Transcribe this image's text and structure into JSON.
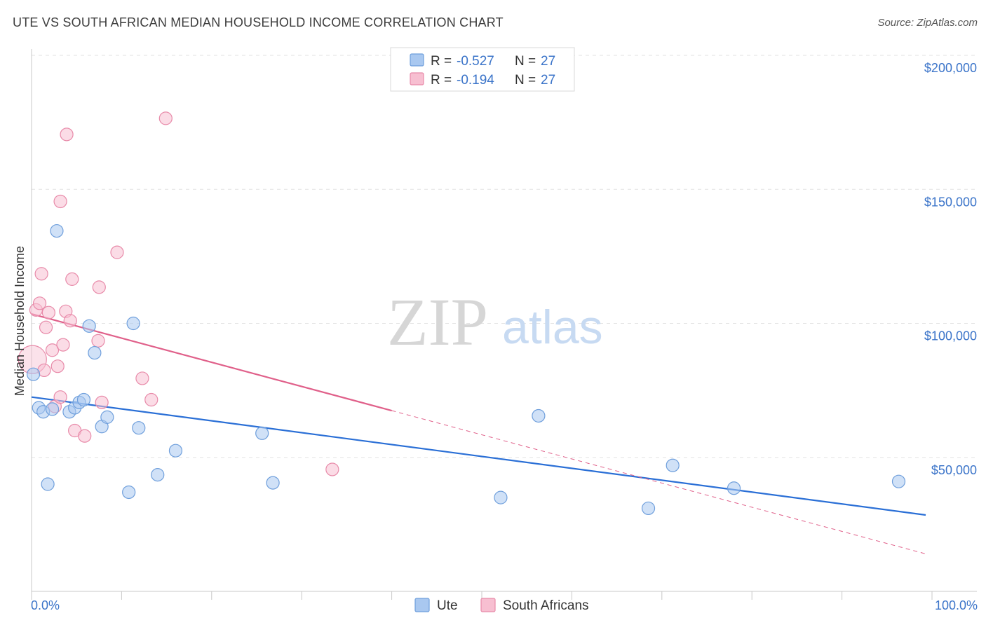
{
  "header": {
    "title": "UTE VS SOUTH AFRICAN MEDIAN HOUSEHOLD INCOME CORRELATION CHART",
    "source": "Source: ZipAtlas.com"
  },
  "watermark": {
    "zip": "ZIP",
    "atlas": "atlas"
  },
  "legend_box": {
    "rows": [
      {
        "r_label": "R =",
        "r_value": "-0.527",
        "n_label": "N =",
        "n_value": "27",
        "color": "#a9c8f0",
        "stroke": "#6f9fdc"
      },
      {
        "r_label": "R =",
        "r_value": "-0.194",
        "n_label": "N =",
        "n_value": "27",
        "color": "#f7bfd1",
        "stroke": "#e88aa9"
      }
    ]
  },
  "chart_data": {
    "type": "scatter",
    "title": "UTE VS SOUTH AFRICAN MEDIAN HOUSEHOLD INCOME CORRELATION CHART",
    "xlabel": "",
    "ylabel": "Median Household Income",
    "xlim": [
      0,
      100
    ],
    "ylim": [
      0,
      210000
    ],
    "x_tick_labels": [
      "0.0%",
      "100.0%"
    ],
    "y_ticks": [
      {
        "value": 50000,
        "label": "$50,000"
      },
      {
        "value": 100000,
        "label": "$100,000"
      },
      {
        "value": 150000,
        "label": "$150,000"
      },
      {
        "value": 200000,
        "label": "$200,000"
      }
    ],
    "grid": true,
    "legend_position": "bottom-center",
    "series": [
      {
        "name": "Ute",
        "color": "#a9c8f0",
        "stroke": "#6f9fdc",
        "line_color": "#2a6fd6",
        "trend": {
          "x0": 0,
          "y0": 72500,
          "x1": 99.3,
          "y1": 28500
        },
        "points": [
          {
            "x": 0.2,
            "y": 81000
          },
          {
            "x": 0.8,
            "y": 68500
          },
          {
            "x": 1.3,
            "y": 67000
          },
          {
            "x": 1.8,
            "y": 40000
          },
          {
            "x": 2.3,
            "y": 68000
          },
          {
            "x": 2.8,
            "y": 134500
          },
          {
            "x": 4.2,
            "y": 67000
          },
          {
            "x": 4.8,
            "y": 68500
          },
          {
            "x": 5.3,
            "y": 70500
          },
          {
            "x": 5.8,
            "y": 71500
          },
          {
            "x": 6.4,
            "y": 99000
          },
          {
            "x": 7.0,
            "y": 89000
          },
          {
            "x": 7.8,
            "y": 61500
          },
          {
            "x": 8.4,
            "y": 65000
          },
          {
            "x": 10.8,
            "y": 37000
          },
          {
            "x": 11.3,
            "y": 100000
          },
          {
            "x": 11.9,
            "y": 61000
          },
          {
            "x": 14.0,
            "y": 43500
          },
          {
            "x": 16.0,
            "y": 52500
          },
          {
            "x": 25.6,
            "y": 59000
          },
          {
            "x": 26.8,
            "y": 40500
          },
          {
            "x": 52.1,
            "y": 35000
          },
          {
            "x": 56.3,
            "y": 65500
          },
          {
            "x": 68.5,
            "y": 31000
          },
          {
            "x": 71.2,
            "y": 47000
          },
          {
            "x": 78.0,
            "y": 38500
          },
          {
            "x": 96.3,
            "y": 41000
          }
        ]
      },
      {
        "name": "South Africans",
        "color": "#f7bfd1",
        "stroke": "#e88aa9",
        "line_color": "#e0608a",
        "trend": {
          "x0": 0,
          "y0": 103500,
          "x1": 99.3,
          "y1": 14000
        },
        "trend_solid_until_x": 40.0,
        "points": [
          {
            "x": 0.1,
            "y": 86500,
            "big": true
          },
          {
            "x": 0.5,
            "y": 105000
          },
          {
            "x": 0.9,
            "y": 107500
          },
          {
            "x": 1.1,
            "y": 118500
          },
          {
            "x": 1.4,
            "y": 82500
          },
          {
            "x": 1.6,
            "y": 98500
          },
          {
            "x": 1.9,
            "y": 104000
          },
          {
            "x": 2.3,
            "y": 90000
          },
          {
            "x": 2.6,
            "y": 69000
          },
          {
            "x": 2.9,
            "y": 84000
          },
          {
            "x": 3.2,
            "y": 72500
          },
          {
            "x": 3.2,
            "y": 145500
          },
          {
            "x": 3.5,
            "y": 92000
          },
          {
            "x": 3.8,
            "y": 104500
          },
          {
            "x": 3.9,
            "y": 170500
          },
          {
            "x": 4.3,
            "y": 101000
          },
          {
            "x": 4.5,
            "y": 116500
          },
          {
            "x": 4.8,
            "y": 60000
          },
          {
            "x": 5.9,
            "y": 58000
          },
          {
            "x": 7.4,
            "y": 93500
          },
          {
            "x": 7.5,
            "y": 113500
          },
          {
            "x": 7.8,
            "y": 70500
          },
          {
            "x": 9.5,
            "y": 126500
          },
          {
            "x": 12.3,
            "y": 79500
          },
          {
            "x": 13.3,
            "y": 71500
          },
          {
            "x": 14.9,
            "y": 176500
          },
          {
            "x": 33.4,
            "y": 45500
          }
        ]
      }
    ]
  }
}
